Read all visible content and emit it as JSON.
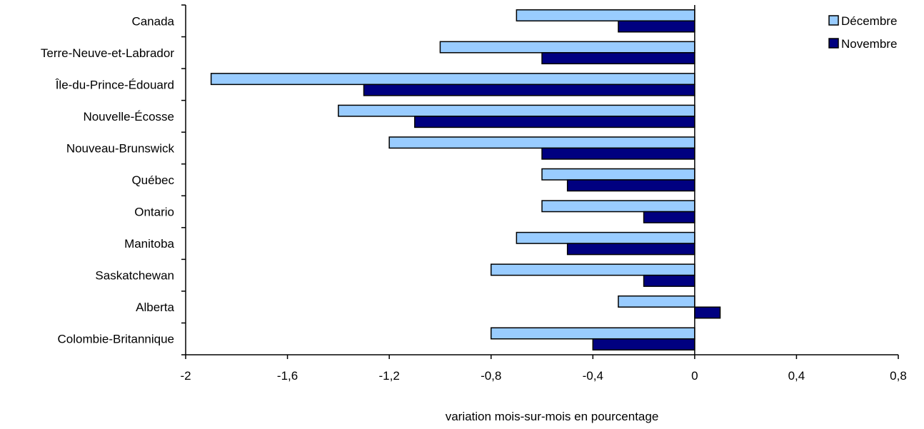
{
  "chart_data": {
    "type": "bar",
    "orientation": "horizontal",
    "categories": [
      "Canada",
      "Terre-Neuve-et-Labrador",
      "Île-du-Prince-Édouard",
      "Nouvelle-Écosse",
      "Nouveau-Brunswick",
      "Québec",
      "Ontario",
      "Manitoba",
      "Saskatchewan",
      "Alberta",
      "Colombie-Britannique"
    ],
    "series": [
      {
        "name": "Décembre",
        "color": "#99ccff",
        "values": [
          -0.7,
          -1.0,
          -1.9,
          -1.4,
          -1.2,
          -0.6,
          -0.6,
          -0.7,
          -0.8,
          -0.3,
          -0.8
        ]
      },
      {
        "name": "Novembre",
        "color": "#000080",
        "values": [
          -0.3,
          -0.6,
          -1.3,
          -1.1,
          -0.6,
          -0.5,
          -0.2,
          -0.5,
          -0.2,
          0.1,
          -0.4
        ]
      }
    ],
    "xlim": [
      -2,
      0.8
    ],
    "xticks": [
      -2,
      -1.6,
      -1.2,
      -0.8,
      -0.4,
      0,
      0.4,
      0.8
    ],
    "xtick_labels": [
      "-2",
      "-1,6",
      "-1,2",
      "-0,8",
      "-0,4",
      "0",
      "0,4",
      "0,8"
    ],
    "xlabel": "variation mois-sur-mois en pourcentage",
    "ylabel": "",
    "title": "",
    "grid": false,
    "legend_position": "top-right"
  }
}
